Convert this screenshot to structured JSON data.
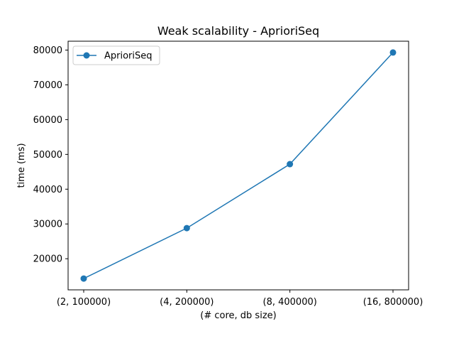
{
  "chart_data": {
    "type": "line",
    "title": "Weak scalability - AprioriSeq",
    "xlabel": "(# core, db size)",
    "ylabel": "time (ms)",
    "categories": [
      "(2, 100000)",
      "(4, 200000)",
      "(8, 400000)",
      "(16, 800000)"
    ],
    "series": [
      {
        "name": "AprioriSeq",
        "values": [
          14300,
          28800,
          47200,
          79300
        ],
        "color": "#1f77b4",
        "marker": "circle"
      }
    ],
    "yticks": [
      20000,
      30000,
      40000,
      50000,
      60000,
      70000,
      80000
    ],
    "ylim": [
      11050,
      82550
    ],
    "grid": false,
    "legend": "top-left"
  }
}
